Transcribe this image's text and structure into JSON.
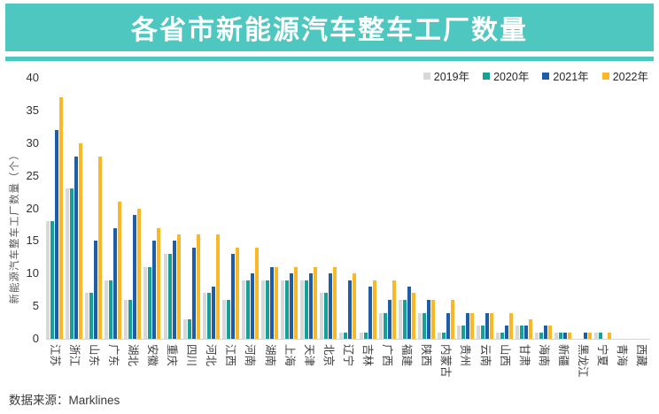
{
  "header": {
    "title": "各省市新能源汽车整车工厂数量"
  },
  "footer": {
    "source_label": "数据来源：Marklines"
  },
  "colors": {
    "banner": "#4FC7C1",
    "axis_line": "#d4d4d4",
    "bar_2019": "#D8D8D8",
    "bar_2020": "#16A098",
    "bar_2021": "#1F5EA7",
    "bar_2022": "#FAB827"
  },
  "chart_data": {
    "type": "bar",
    "title": "各省市新能源汽车整车工厂数量",
    "xlabel": "",
    "ylabel": "新能源汽车整车工厂数量（个）",
    "ylim": [
      0,
      40
    ],
    "yticks": [
      0,
      5,
      10,
      15,
      20,
      25,
      30,
      35,
      40
    ],
    "grid": false,
    "legend_position": "top-right",
    "categories": [
      "江苏",
      "浙江",
      "山东",
      "广东",
      "湖北",
      "安徽",
      "重庆",
      "四川",
      "河北",
      "江西",
      "河南",
      "湖南",
      "上海",
      "天津",
      "北京",
      "辽宁",
      "吉林",
      "广西",
      "福建",
      "陕西",
      "内蒙古",
      "贵州",
      "云南",
      "山西",
      "甘肃",
      "海南",
      "新疆",
      "黑龙江",
      "宁夏",
      "青海",
      "西藏"
    ],
    "series": [
      {
        "name": "2019年",
        "color": "#D8D8D8",
        "values": [
          18,
          23,
          7,
          9,
          6,
          11,
          13,
          3,
          7,
          6,
          9,
          9,
          9,
          9,
          7,
          1,
          1,
          4,
          6,
          4,
          1,
          2,
          2,
          1,
          2,
          1,
          1,
          0,
          1,
          0,
          0
        ]
      },
      {
        "name": "2020年",
        "color": "#16A098",
        "values": [
          18,
          23,
          7,
          9,
          6,
          11,
          13,
          3,
          7,
          6,
          9,
          9,
          9,
          9,
          7,
          1,
          1,
          4,
          6,
          4,
          1,
          2,
          2,
          1,
          2,
          1,
          1,
          0,
          1,
          0,
          0
        ]
      },
      {
        "name": "2021年",
        "color": "#1F5EA7",
        "values": [
          32,
          28,
          15,
          17,
          19,
          15,
          15,
          14,
          8,
          13,
          10,
          11,
          10,
          10,
          10,
          9,
          8,
          6,
          8,
          6,
          4,
          4,
          4,
          2,
          2,
          2,
          1,
          1,
          0,
          0,
          0
        ]
      },
      {
        "name": "2022年",
        "color": "#FAB827",
        "values": [
          37,
          30,
          28,
          21,
          20,
          17,
          16,
          16,
          16,
          14,
          14,
          11,
          11,
          11,
          11,
          10,
          9,
          9,
          7,
          6,
          6,
          4,
          4,
          4,
          3,
          2,
          1,
          1,
          1,
          0,
          0
        ]
      }
    ]
  }
}
